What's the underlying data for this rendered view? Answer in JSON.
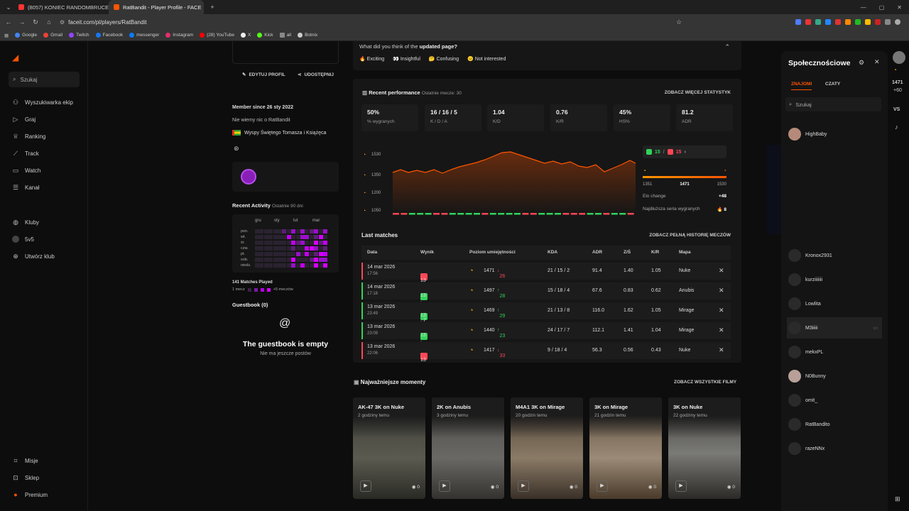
{
  "browser": {
    "tabs": [
      {
        "label": "(8057) KONIEC RANDOMBRUCE",
        "active": false,
        "color": "#ff3333"
      },
      {
        "label": "RatBandit - Player Profile - FACE",
        "active": true,
        "color": "#ff5500"
      }
    ],
    "url": "faceit.com/pl/players/RatBandit",
    "bookmarks": [
      "Google",
      "Gmail",
      "Twitch",
      "Facebook",
      "messenger",
      "Instagram",
      "(28) YouTube",
      "X",
      "Kick",
      "all",
      "Botnix"
    ]
  },
  "sidebar": {
    "search_label": "Szukaj",
    "items": [
      "Wyszukiwarka ekip",
      "Graj",
      "Ranking",
      "Track",
      "Watch",
      "Kanał",
      "Kluby",
      "5v5",
      "Utwórz klub"
    ],
    "bottom_items": [
      "Misje",
      "Sklep",
      "Premium"
    ]
  },
  "profile": {
    "edit_label": "EDYTUJ PROFIL",
    "share_label": "UDOSTĘPNIJ",
    "member_since": "Member since 26 sty 2022",
    "about": "Nie wiemy nic o RatBandit",
    "country": "Wyspy Świętego Tomasza i Książęca",
    "recent_activity_title": "Recent Activity",
    "recent_activity_range": "Ostatnie 90 dni",
    "months": [
      "gru",
      "sty",
      "lut",
      "mar"
    ],
    "days": [
      "pon.",
      "wt.",
      "śr.",
      "czw.",
      "pt.",
      "sob.",
      "niedz."
    ],
    "matches_played": "141 Matches Played",
    "legend_min": "1 mecz",
    "legend_max": "+5 meczów",
    "guestbook_title": "Guestbook (0)",
    "guestbook_empty": "The guestbook is empty",
    "guestbook_sub": "Nie ma jeszcze postów"
  },
  "feedback": {
    "question_prefix": "What did you think of the",
    "question_bold": "updated page?",
    "options": [
      "Exciting",
      "Insightful",
      "Confusing",
      "Not interested"
    ]
  },
  "performance": {
    "title": "Recent performance",
    "subtitle": "Ostatnie mecze: 30",
    "more_stats": "ZOBACZ WIĘCEJ STATYSTYK",
    "stats": [
      {
        "value": "50%",
        "label": "% wygranych"
      },
      {
        "value": "16 / 16 / 5",
        "label": "K / D / A"
      },
      {
        "value": "1.04",
        "label": "K/D"
      },
      {
        "value": "0.76",
        "label": "K/R"
      },
      {
        "value": "45%",
        "label": "HS%"
      },
      {
        "value": "81.2",
        "label": "ADR"
      }
    ],
    "elo_ticks": [
      "1530",
      "1350",
      "1200",
      "1050"
    ],
    "wins": "15",
    "losses": "15",
    "range_min": "1351",
    "current_elo": "1471",
    "range_max": "1530",
    "elo_change_label": "Elo change",
    "elo_change": "+48",
    "streak_label": "Najdłuższa seria wygranych",
    "streak_value": "8"
  },
  "last_matches": {
    "title": "Last matches",
    "history_link": "ZOBACZ PEŁNĄ HISTORIĘ MECZÓW",
    "headers": [
      "Data",
      "Wynik",
      "Poziom umiejętności",
      "KDA",
      "ADR",
      "Z/Ś",
      "K/R",
      "Mapa"
    ],
    "rows": [
      {
        "date": "14 mar 2026",
        "time": "17:56",
        "win": false,
        "score": ": 13",
        "elo": "1471",
        "delta": "26",
        "kda": "21 / 15 / 2",
        "adr": "91.4",
        "hs": "1.40",
        "kr": "1.05",
        "map": "Nuke"
      },
      {
        "date": "14 mar 2026",
        "time": "17:18",
        "win": true,
        "score": "13 : 11",
        "elo": "1497",
        "delta": "28",
        "kda": "15 / 18 / 4",
        "adr": "67.6",
        "hs": "0.83",
        "kr": "0.62",
        "map": "Anubis"
      },
      {
        "date": "13 mar 2026",
        "time": "23:49",
        "win": true,
        "score": "13 : 7",
        "elo": "1469",
        "delta": "29",
        "kda": "21 / 13 / 8",
        "adr": "116.0",
        "hs": "1.62",
        "kr": "1.05",
        "map": "Mirage"
      },
      {
        "date": "13 mar 2026",
        "time": "23:09",
        "win": true,
        "score": "13 : 10",
        "elo": "1440",
        "delta": "23",
        "kda": "24 / 17 / 7",
        "adr": "112.1",
        "hs": "1.41",
        "kr": "1.04",
        "map": "Mirage"
      },
      {
        "date": "13 mar 2026",
        "time": "22:06",
        "win": false,
        "score": ": 13",
        "elo": "1417",
        "delta": "33",
        "kda": "9 / 18 / 4",
        "adr": "56.3",
        "hs": "0.56",
        "kr": "0.43",
        "map": "Nuke"
      }
    ]
  },
  "moments": {
    "title": "Najważniejsze momenty",
    "all_link": "ZOBACZ WSZYSTKIE FILMY",
    "items": [
      {
        "title": "AK-47 3K on Nuke",
        "when": "2 godziny temu",
        "views": "0"
      },
      {
        "title": "2K on Anubis",
        "when": "3 godziny temu",
        "views": "0"
      },
      {
        "title": "M4A1 3K on Mirage",
        "when": "20 godzin temu",
        "views": "0"
      },
      {
        "title": "3K on Mirage",
        "when": "21 godzin temu",
        "views": "0"
      },
      {
        "title": "3K on Nuke",
        "when": "22 godziny temu",
        "views": "0"
      }
    ]
  },
  "social": {
    "title": "Społecznościowe",
    "tabs": [
      "ZNAJOMI",
      "CZATY"
    ],
    "search_placeholder": "Szukaj",
    "friends_top": [
      "HighBaby"
    ],
    "friends": [
      "Kronox2931",
      "kurziiiiiii",
      "Lowlita",
      "M3iiiii",
      "mekxPL",
      "N0Bunny",
      "omit_",
      "RatBandito",
      "razeNNx"
    ]
  },
  "rail": {
    "elo": "1471",
    "change": "+60",
    "vs": "VS"
  },
  "colors": {
    "accent": "#ff5500",
    "win": "#32d35a",
    "loss": "#ff4655",
    "activity": "#d400ff"
  }
}
